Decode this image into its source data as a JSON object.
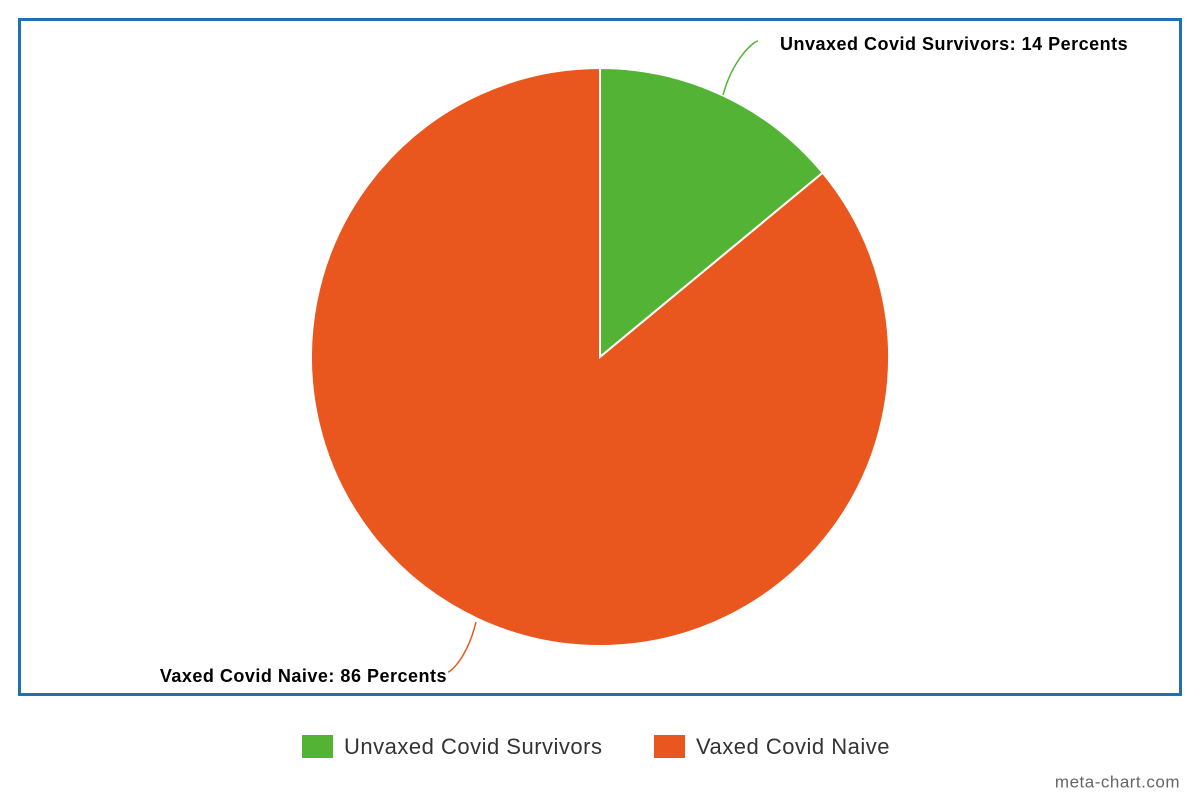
{
  "chart_data": {
    "type": "pie",
    "categories": [
      "Unvaxed Covid Survivors",
      "Vaxed Covid Naive"
    ],
    "values": [
      14,
      86
    ],
    "value_labels": [
      "Unvaxed Covid Survivors: 14 Percents",
      "Vaxed Covid Naive: 86 Percents"
    ],
    "colors": [
      "#52b335",
      "#e9571e"
    ],
    "legend": "bottom",
    "source": "meta-chart.com"
  }
}
